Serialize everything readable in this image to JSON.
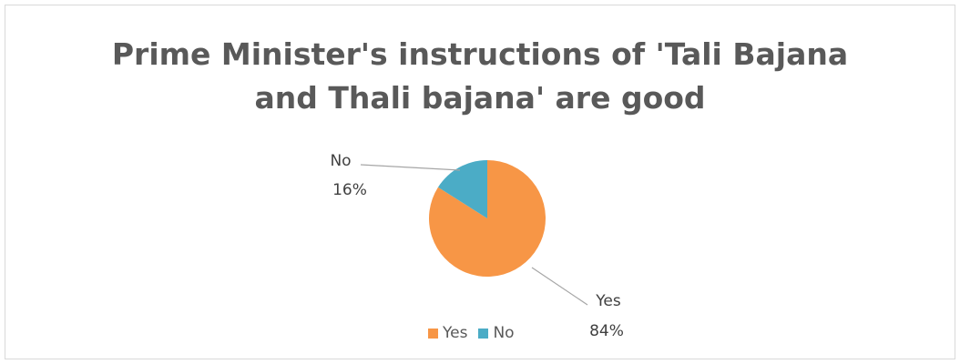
{
  "chart_data": {
    "type": "pie",
    "title": {
      "line1": "Prime Minister's instructions of 'Tali Bajana",
      "line2": "and Thali bajana' are good"
    },
    "slices": [
      {
        "label": "Yes",
        "percent": "84%",
        "value": 84,
        "color": "#F79646"
      },
      {
        "label": "No",
        "percent": "16%",
        "value": 16,
        "color": "#4BACC6"
      }
    ],
    "legend": {
      "position": "bottom",
      "entries": [
        "Yes",
        "No"
      ]
    }
  }
}
